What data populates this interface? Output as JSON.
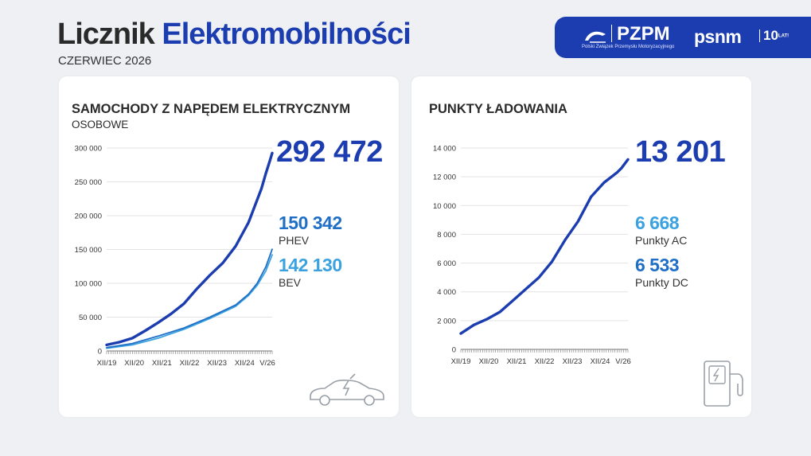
{
  "header": {
    "title_part1": "Licznik",
    "title_part2": "Elektromobilności",
    "date": "CZERWIEC 2026"
  },
  "logos": {
    "pzpm": "PZPM",
    "pzpm_full": "Polski Związek Przemysłu Motoryzacyjnego",
    "psnm": "psnm",
    "anniversary": "10",
    "anniversary_suffix": "LAT!"
  },
  "colors": {
    "brand": "#1c3db0",
    "total_line": "#1c3db0",
    "phev": "#1f6fc7",
    "bev": "#3aa2e0",
    "ac": "#3aa2e0",
    "dc": "#1f6fc7"
  },
  "cars": {
    "title": "SAMOCHODY Z NAPĘDEM ELEKTRYCZNYM",
    "subtitle": "OSOBOWE",
    "total_value": "292 472",
    "phev_value": "150 342",
    "phev_label": "PHEV",
    "bev_value": "142 130",
    "bev_label": "BEV",
    "icon": "electric-car-icon"
  },
  "charging": {
    "title": "PUNKTY ŁADOWANIA",
    "total_value": "13 201",
    "ac_value": "6 668",
    "ac_label": "Punkty AC",
    "dc_value": "6 533",
    "dc_label": "Punkty DC",
    "icon": "charging-station-icon"
  },
  "chart_data": [
    {
      "type": "line",
      "title": "SAMOCHODY Z NAPĘDEM ELEKTRYCZNYM",
      "x_ticks": [
        "XII/19",
        "XII/20",
        "XII/21",
        "XII/22",
        "XII/23",
        "XII/24",
        "V/26"
      ],
      "x_range": [
        0,
        77
      ],
      "y_ticks": [
        0,
        50000,
        100000,
        150000,
        200000,
        250000,
        300000
      ],
      "y_tick_labels": [
        "0",
        "50 000",
        "100 000",
        "150 000",
        "200 000",
        "250 000",
        "300 000"
      ],
      "ylim": [
        0,
        300000
      ],
      "grid": true,
      "series": [
        {
          "name": "",
          "x": [
            0,
            6,
            12,
            18,
            24,
            30,
            36,
            42,
            48,
            54,
            60,
            66,
            72,
            74,
            76,
            77
          ],
          "values": [
            9000,
            13000,
            19000,
            30000,
            42000,
            55000,
            70000,
            92000,
            112000,
            130000,
            155000,
            190000,
            240000,
            262000,
            282000,
            292472
          ]
        },
        {
          "name": "PHEV",
          "x": [
            0,
            12,
            24,
            36,
            48,
            60,
            66,
            70,
            74,
            77
          ],
          "values": [
            5000,
            11000,
            22000,
            34000,
            50000,
            68000,
            84000,
            100000,
            124000,
            150342
          ]
        },
        {
          "name": "BEV",
          "x": [
            0,
            12,
            24,
            36,
            48,
            60,
            66,
            70,
            74,
            77
          ],
          "values": [
            4000,
            9000,
            19000,
            32000,
            48000,
            66000,
            82000,
            97000,
            118000,
            142130
          ]
        }
      ]
    },
    {
      "type": "line",
      "title": "PUNKTY ŁADOWANIA",
      "x_ticks": [
        "XII/19",
        "XII/20",
        "XII/21",
        "XII/22",
        "XII/23",
        "XII/24",
        "V/26"
      ],
      "x_range": [
        0,
        77
      ],
      "y_ticks": [
        0,
        2000,
        4000,
        6000,
        8000,
        10000,
        12000,
        14000
      ],
      "y_tick_labels": [
        "0",
        "2 000",
        "4 000",
        "6 000",
        "8 000",
        "10 000",
        "12 000",
        "14 000"
      ],
      "ylim": [
        0,
        14000
      ],
      "grid": true,
      "series": [
        {
          "name": "",
          "x": [
            0,
            6,
            12,
            18,
            24,
            30,
            36,
            42,
            48,
            54,
            60,
            66,
            72,
            74,
            77
          ],
          "values": [
            1100,
            1700,
            2100,
            2600,
            3400,
            4200,
            5000,
            6100,
            7600,
            8900,
            10600,
            11600,
            12300,
            12600,
            13201
          ]
        }
      ]
    }
  ]
}
